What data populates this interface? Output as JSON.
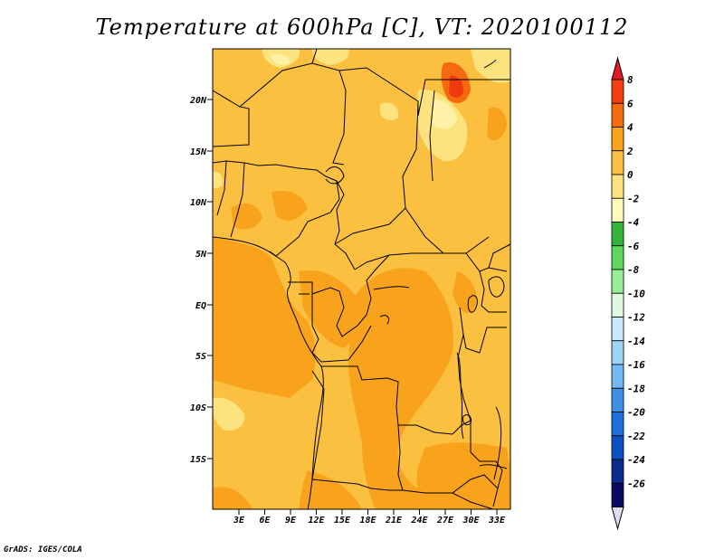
{
  "title": "Temperature at 600hPa [C], VT: 2020100112",
  "credit": "GrADS: IGES/COLA",
  "map": {
    "lat_labels": [
      "20N",
      "15N",
      "10N",
      "5N",
      "EQ",
      "5S",
      "10S",
      "15S"
    ],
    "lon_labels": [
      "3E",
      "6E",
      "9E",
      "12E",
      "15E",
      "18E",
      "21E",
      "24E",
      "27E",
      "30E",
      "33E"
    ],
    "field_colors": {
      "base": "#fcc040",
      "warmer": "#f9a31c",
      "cooler": "#fde380",
      "coolest": "#fef2a8",
      "hot": "#f66a0f",
      "hottest": "#ef3a0d"
    }
  },
  "colorbar": {
    "labels": [
      "8",
      "6",
      "4",
      "2",
      "0",
      "-2",
      "-4",
      "-6",
      "-8",
      "-10",
      "-12",
      "-14",
      "-16",
      "-18",
      "-20",
      "-22",
      "-24",
      "-26"
    ],
    "colors": [
      "#e8202a",
      "#f53e0d",
      "#f56c0f",
      "#f9a31c",
      "#fcc040",
      "#fde380",
      "#fef9b8",
      "#31b53c",
      "#5fd65f",
      "#98ed98",
      "#dff8df",
      "#c6e9f8",
      "#9fd3f5",
      "#75b7f2",
      "#3f8fe8",
      "#1f70dc",
      "#0d4fc4",
      "#0a2a90",
      "#0a0a60"
    ],
    "top_arrow_color": "#e01c28",
    "bottom_arrow_color": "#dcdcf5"
  }
}
